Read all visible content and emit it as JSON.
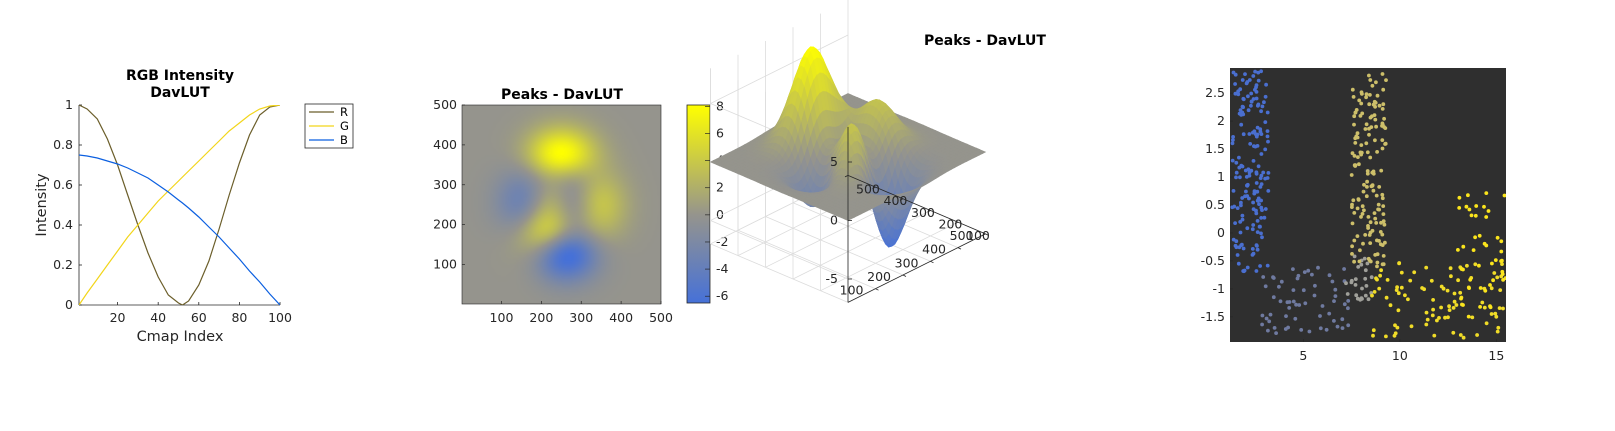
{
  "chart_data": [
    {
      "type": "line",
      "title": [
        "RGB Intensity",
        "DavLUT"
      ],
      "xlabel": "Cmap Index",
      "ylabel": "Intensity",
      "xlim": [
        1,
        100
      ],
      "ylim": [
        0,
        1
      ],
      "xticks": [
        20,
        40,
        60,
        80,
        100
      ],
      "yticks": [
        0,
        0.2,
        0.4,
        0.6,
        0.8,
        1
      ],
      "xtick_labels": [
        "20",
        "40",
        "60",
        "80",
        "100"
      ],
      "ytick_labels": [
        "0",
        "0.2",
        "0.4",
        "0.6",
        "0.8",
        "1"
      ],
      "x": [
        1,
        5,
        10,
        15,
        20,
        25,
        30,
        35,
        40,
        45,
        50,
        52,
        55,
        60,
        65,
        70,
        75,
        80,
        85,
        90,
        95,
        100
      ],
      "legend_position": "top-right",
      "series": [
        {
          "name": "R",
          "color": "#6b5e2a",
          "values": [
            1.0,
            0.98,
            0.93,
            0.83,
            0.7,
            0.55,
            0.4,
            0.26,
            0.14,
            0.05,
            0.01,
            0.0,
            0.02,
            0.1,
            0.22,
            0.38,
            0.55,
            0.71,
            0.85,
            0.95,
            0.99,
            1.0
          ]
        },
        {
          "name": "G",
          "color": "#f2d51a",
          "values": [
            0.0,
            0.06,
            0.13,
            0.2,
            0.27,
            0.34,
            0.4,
            0.46,
            0.52,
            0.57,
            0.62,
            0.64,
            0.67,
            0.72,
            0.77,
            0.82,
            0.87,
            0.91,
            0.95,
            0.98,
            0.995,
            1.0
          ]
        },
        {
          "name": "B",
          "color": "#0b5fe0",
          "values": [
            0.75,
            0.745,
            0.735,
            0.72,
            0.705,
            0.685,
            0.66,
            0.635,
            0.6,
            0.565,
            0.525,
            0.51,
            0.485,
            0.44,
            0.39,
            0.34,
            0.285,
            0.23,
            0.17,
            0.115,
            0.055,
            0.0
          ]
        }
      ]
    },
    {
      "type": "heatmap",
      "title": "Peaks - DavLUT",
      "xlim": [
        1,
        500
      ],
      "ylim": [
        1,
        500
      ],
      "xticks": [
        100,
        200,
        300,
        400,
        500
      ],
      "yticks": [
        100,
        200,
        300,
        400,
        500
      ],
      "xtick_labels": [
        "100",
        "200",
        "300",
        "400",
        "500"
      ],
      "ytick_labels": [
        "100",
        "200",
        "300",
        "400",
        "500"
      ],
      "colorbar": {
        "range": [
          -6.5,
          8.1
        ],
        "ticks": [
          -6,
          -4,
          -2,
          0,
          2,
          4,
          6,
          8
        ],
        "tick_labels": [
          "-6",
          "-4",
          "-2",
          "0",
          "2",
          "4",
          "6",
          "8"
        ]
      },
      "colormap": [
        {
          "v": -6.5,
          "color": "#4671d8"
        },
        {
          "v": 0,
          "color": "#95948d"
        },
        {
          "v": 8.1,
          "color": "#ffff00"
        }
      ],
      "function": "peaks"
    },
    {
      "type": "surface",
      "title": "Peaks - DavLUT",
      "xticks": [
        100,
        200,
        300,
        400,
        500
      ],
      "yticks": [
        100,
        200,
        300,
        400,
        500
      ],
      "zticks": [
        -5,
        0,
        5
      ],
      "xtick_labels": [
        "100",
        "200",
        "300",
        "400",
        "500"
      ],
      "ytick_labels": [
        "100",
        "200",
        "300",
        "400",
        "500"
      ],
      "ztick_labels": [
        "-5",
        "0",
        "5"
      ],
      "zlim": [
        -7,
        8
      ],
      "function": "peaks"
    },
    {
      "type": "scatter",
      "background": "#2f2f2f",
      "xlim": [
        1.2,
        15.5
      ],
      "ylim": [
        -1.95,
        2.95
      ],
      "xticks": [
        5,
        10,
        15
      ],
      "yticks": [
        -1.5,
        -1,
        -0.5,
        0,
        0.5,
        1,
        1.5,
        2,
        2.5
      ],
      "xtick_labels": [
        "5",
        "10",
        "15"
      ],
      "ytick_labels": [
        "-1.5",
        "-1",
        "-0.5",
        "0",
        "0.5",
        "1",
        "1.5",
        "2",
        "2.5"
      ],
      "point_groups": [
        {
          "x_range": [
            1.3,
            3.2
          ],
          "y_range": [
            -0.7,
            2.9
          ],
          "count": 170,
          "color": "#4a6fd0"
        },
        {
          "x_range": [
            2.8,
            7.5
          ],
          "y_range": [
            -1.8,
            -0.6
          ],
          "count": 60,
          "color": "#6f7aa0"
        },
        {
          "x_range": [
            7.2,
            8.6
          ],
          "y_range": [
            -1.2,
            -0.4
          ],
          "count": 25,
          "color": "#a0a09a"
        },
        {
          "x_range": [
            7.5,
            9.3
          ],
          "y_range": [
            -0.6,
            2.85
          ],
          "count": 150,
          "color": "#cdbf6a"
        },
        {
          "x_range": [
            8.5,
            15.5
          ],
          "y_range": [
            -1.9,
            -0.5
          ],
          "count": 90,
          "color": "#f0dc28"
        },
        {
          "x_range": [
            13.0,
            15.5
          ],
          "y_range": [
            -1.5,
            0.8
          ],
          "count": 45,
          "color": "#fbe51c"
        }
      ]
    }
  ]
}
